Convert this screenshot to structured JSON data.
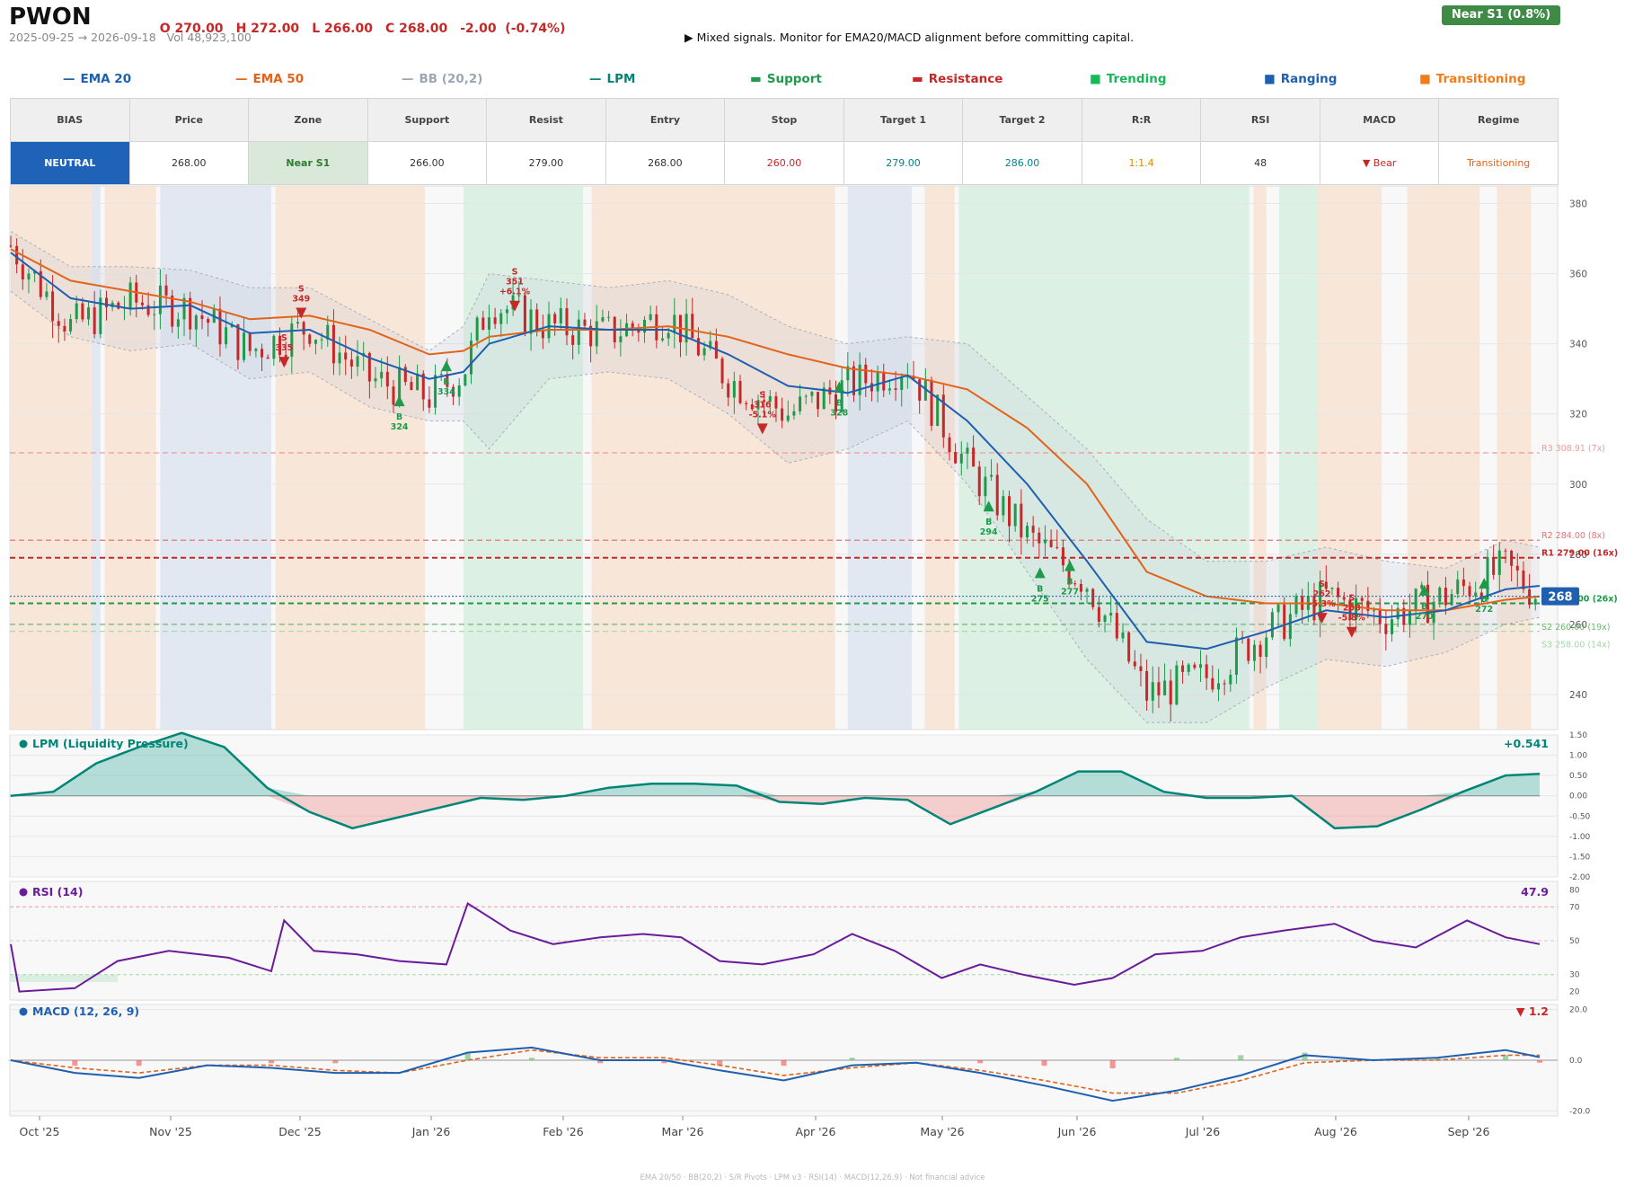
{
  "header": {
    "ticker": "PWON",
    "ohlc": [
      "O 270.00",
      "H 272.00",
      "L 266.00",
      "C 268.00",
      "-2.00  (-0.74%)"
    ],
    "range": "2025-09-25 → 2026-09-18",
    "volume": "Vol 48,923,100",
    "signal": "▶  Mixed signals. Monitor for EMA20/MACD alignment before committing capital.",
    "badge": "Near S1  (0.8%)"
  },
  "legend": [
    {
      "label": "EMA 20",
      "glyph": "—",
      "color": "#1f5fb0"
    },
    {
      "label": "EMA 50",
      "glyph": "—",
      "color": "#e2631a"
    },
    {
      "label": "BB (20,2)",
      "glyph": "—",
      "color": "#9aa7b4"
    },
    {
      "label": "LPM",
      "glyph": "—",
      "color": "#008577"
    },
    {
      "label": "Support",
      "glyph": "▬",
      "color": "#1e9a4a"
    },
    {
      "label": "Resistance",
      "glyph": "▬",
      "color": "#c62828"
    },
    {
      "label": "Trending",
      "glyph": "■",
      "color": "#17b85a"
    },
    {
      "label": "Ranging",
      "glyph": "■",
      "color": "#1f5fb0"
    },
    {
      "label": "Transitioning",
      "glyph": "■",
      "color": "#f07d1a"
    }
  ],
  "summary": {
    "headers": [
      "BIAS",
      "Price",
      "Zone",
      "Support",
      "Resist",
      "Entry",
      "Stop",
      "Target 1",
      "Target 2",
      "R:R",
      "RSI",
      "MACD",
      "Regime"
    ],
    "values": [
      "NEUTRAL",
      "268.00",
      "Near S1",
      "266.00",
      "279.00",
      "268.00",
      "260.00",
      "279.00",
      "286.00",
      "1:1.4",
      "48",
      "▼ Bear",
      "Transitioning"
    ],
    "value_colors": [
      "#ffffff",
      "#333333",
      "#2e7d32",
      "#333333",
      "#333333",
      "#333333",
      "#c62828",
      "#00838f",
      "#00838f",
      "#e08a00",
      "#333333",
      "#c62828",
      "#e2631a"
    ]
  },
  "chart_data": [
    {
      "type": "candlestick",
      "title": "",
      "ylim": [
        230,
        385
      ],
      "yticks": [
        240,
        260,
        280,
        300,
        320,
        340,
        360,
        380
      ],
      "xticks": [
        "Oct '25",
        "Nov '25",
        "Dec '25",
        "Jan '26",
        "Feb '26",
        "Mar '26",
        "Apr '26",
        "May '26",
        "Jun '26",
        "Jul '26",
        "Aug '26",
        "Sep '26"
      ],
      "x": [
        "2025-09-25",
        "2025-10-09",
        "2025-10-23",
        "2025-11-06",
        "2025-11-20",
        "2025-12-04",
        "2025-12-18",
        "2026-01-01",
        "2026-01-09",
        "2026-01-15",
        "2026-01-29",
        "2026-02-12",
        "2026-02-26",
        "2026-03-12",
        "2026-03-26",
        "2026-04-09",
        "2026-04-23",
        "2026-05-07",
        "2026-05-21",
        "2026-06-04",
        "2026-06-18",
        "2026-07-02",
        "2026-07-16",
        "2026-07-30",
        "2026-08-13",
        "2026-08-27",
        "2026-09-10",
        "2026-09-18"
      ],
      "close": [
        368,
        345,
        352,
        350,
        338,
        345,
        330,
        325,
        332,
        352,
        345,
        343,
        348,
        330,
        320,
        328,
        334,
        305,
        285,
        272,
        240,
        245,
        258,
        268,
        262,
        268,
        276,
        268
      ],
      "ema20": [
        366,
        353,
        350,
        351,
        343,
        344,
        336,
        330,
        332,
        340,
        345,
        344,
        344,
        337,
        328,
        326,
        331,
        318,
        300,
        278,
        255,
        253,
        258,
        264,
        262,
        264,
        270,
        271
      ],
      "ema50": [
        367,
        358,
        355,
        352,
        347,
        348,
        344,
        337,
        338,
        342,
        344,
        344,
        345,
        342,
        337,
        333,
        331,
        327,
        316,
        300,
        275,
        268,
        266,
        266,
        264,
        264,
        267,
        268
      ],
      "bb_upper": [
        372,
        362,
        362,
        361,
        356,
        356,
        347,
        338,
        345,
        360,
        358,
        356,
        358,
        354,
        345,
        340,
        342,
        340,
        325,
        310,
        290,
        278,
        278,
        282,
        278,
        276,
        284,
        282
      ],
      "bb_lower": [
        355,
        342,
        338,
        340,
        330,
        332,
        322,
        318,
        318,
        310,
        330,
        332,
        330,
        320,
        306,
        310,
        318,
        300,
        275,
        250,
        232,
        232,
        242,
        250,
        248,
        252,
        260,
        262
      ],
      "levels": [
        {
          "label": "R3 308.91 (7x)",
          "value": 308.91,
          "color": "#ef9a9a",
          "style": "dashed"
        },
        {
          "label": "R2 284.00 (8x)",
          "value": 284,
          "color": "#e57373",
          "style": "dashed"
        },
        {
          "label": "R1 279.00 (16x)",
          "value": 279,
          "color": "#c62828",
          "style": "dashed"
        },
        {
          "label": "S1 266.00 (26x)",
          "value": 266,
          "color": "#1e9a4a",
          "style": "dashed"
        },
        {
          "label": "S2 260.00 (19x)",
          "value": 260,
          "color": "#66bb6a",
          "style": "dashed"
        },
        {
          "label": "S3 258.00 (14x)",
          "value": 258,
          "color": "#a5d6a7",
          "style": "dashed"
        }
      ],
      "last_price": {
        "label": "268",
        "value": 268
      },
      "signals": [
        {
          "x": "2025-11-28",
          "y": 335,
          "side": "S",
          "label": "S\n335"
        },
        {
          "x": "2025-12-02",
          "y": 349,
          "side": "S",
          "label": "S\n349"
        },
        {
          "x": "2025-12-25",
          "y": 324,
          "side": "B",
          "label": "B\n324"
        },
        {
          "x": "2026-01-05",
          "y": 334,
          "side": "B",
          "label": "B\n334"
        },
        {
          "x": "2026-01-21",
          "y": 351,
          "side": "S",
          "label": "S\n351\n+6.1%"
        },
        {
          "x": "2026-03-20",
          "y": 316,
          "side": "S",
          "label": "S\n316\n-5.1%"
        },
        {
          "x": "2026-04-07",
          "y": 328,
          "side": "B",
          "label": "B\n328"
        },
        {
          "x": "2026-05-12",
          "y": 294,
          "side": "B",
          "label": "B\n294"
        },
        {
          "x": "2026-05-24",
          "y": 275,
          "side": "B",
          "label": "B\n275"
        },
        {
          "x": "2026-05-31",
          "y": 277,
          "side": "B",
          "label": "B\n277"
        },
        {
          "x": "2026-07-29",
          "y": 262,
          "side": "S",
          "label": "S\n262\n-5.3%"
        },
        {
          "x": "2026-08-05",
          "y": 258,
          "side": "S",
          "label": "S\n258\n-5.8%"
        },
        {
          "x": "2026-08-22",
          "y": 270,
          "side": "B",
          "label": "B\n270"
        },
        {
          "x": "2026-09-05",
          "y": 272,
          "side": "B",
          "label": "B\n272"
        }
      ],
      "regimes": [
        {
          "start": "2025-09-25",
          "end": "2025-10-14",
          "type": "Transitioning"
        },
        {
          "start": "2025-10-14",
          "end": "2025-10-16",
          "type": "Ranging"
        },
        {
          "start": "2025-10-17",
          "end": "2025-10-29",
          "type": "Transitioning"
        },
        {
          "start": "2025-10-30",
          "end": "2025-11-25",
          "type": "Ranging"
        },
        {
          "start": "2025-11-26",
          "end": "2025-12-31",
          "type": "Transitioning"
        },
        {
          "start": "2026-01-09",
          "end": "2026-02-06",
          "type": "Trending"
        },
        {
          "start": "2026-02-08",
          "end": "2026-04-06",
          "type": "Transitioning"
        },
        {
          "start": "2026-04-09",
          "end": "2026-04-24",
          "type": "Ranging"
        },
        {
          "start": "2026-04-27",
          "end": "2026-05-04",
          "type": "Transitioning"
        },
        {
          "start": "2026-05-05",
          "end": "2026-07-12",
          "type": "Trending"
        },
        {
          "start": "2026-07-13",
          "end": "2026-07-16",
          "type": "Transitioning"
        },
        {
          "start": "2026-07-19",
          "end": "2026-07-28",
          "type": "Trending"
        },
        {
          "start": "2026-07-28",
          "end": "2026-08-12",
          "type": "Transitioning"
        },
        {
          "start": "2026-08-18",
          "end": "2026-09-04",
          "type": "Transitioning"
        },
        {
          "start": "2026-09-08",
          "end": "2026-09-16",
          "type": "Transitioning"
        }
      ]
    },
    {
      "type": "area",
      "title": "LPM (Liquidity Pressure)",
      "last_label": "+0.541",
      "ylim": [
        -2.0,
        1.5
      ],
      "yticks": [
        -2.0,
        -1.5,
        -1.0,
        -0.5,
        0.0,
        0.5,
        1.0,
        1.5
      ],
      "x": [
        "2025-09-25",
        "2025-10-05",
        "2025-10-15",
        "2025-10-25",
        "2025-11-04",
        "2025-11-14",
        "2025-11-24",
        "2025-12-04",
        "2025-12-14",
        "2025-12-24",
        "2026-01-03",
        "2026-01-13",
        "2026-01-23",
        "2026-02-02",
        "2026-02-12",
        "2026-02-22",
        "2026-03-04",
        "2026-03-14",
        "2026-03-24",
        "2026-04-03",
        "2026-04-13",
        "2026-04-23",
        "2026-05-03",
        "2026-05-13",
        "2026-05-23",
        "2026-06-02",
        "2026-06-12",
        "2026-06-22",
        "2026-07-02",
        "2026-07-12",
        "2026-07-22",
        "2026-08-01",
        "2026-08-11",
        "2026-08-21",
        "2026-08-31",
        "2026-09-10",
        "2026-09-18"
      ],
      "values": [
        0.0,
        0.1,
        0.8,
        1.2,
        1.55,
        1.2,
        0.2,
        -0.4,
        -0.8,
        -0.55,
        -0.3,
        -0.05,
        -0.1,
        0.0,
        0.2,
        0.3,
        0.3,
        0.25,
        -0.15,
        -0.2,
        -0.05,
        -0.1,
        -0.7,
        -0.3,
        0.1,
        0.6,
        0.6,
        0.1,
        -0.05,
        -0.05,
        0.0,
        -0.8,
        -0.75,
        -0.35,
        0.1,
        0.5,
        0.54
      ]
    },
    {
      "type": "line",
      "title": "RSI (14)",
      "last_label": "47.9",
      "ylim": [
        15,
        85
      ],
      "yticks": [
        20,
        30,
        50,
        70,
        80
      ],
      "x": [
        "2025-09-25",
        "2025-09-27",
        "2025-10-10",
        "2025-10-20",
        "2025-11-01",
        "2025-11-15",
        "2025-11-25",
        "2025-11-28",
        "2025-12-05",
        "2025-12-15",
        "2025-12-25",
        "2026-01-05",
        "2026-01-10",
        "2026-01-20",
        "2026-01-30",
        "2026-02-10",
        "2026-02-20",
        "2026-03-01",
        "2026-03-10",
        "2026-03-20",
        "2026-04-01",
        "2026-04-10",
        "2026-04-20",
        "2026-05-01",
        "2026-05-10",
        "2026-05-20",
        "2026-06-01",
        "2026-06-10",
        "2026-06-20",
        "2026-07-01",
        "2026-07-10",
        "2026-07-20",
        "2026-08-01",
        "2026-08-10",
        "2026-08-20",
        "2026-09-01",
        "2026-09-10",
        "2026-09-18"
      ],
      "values": [
        48,
        20,
        22,
        38,
        44,
        40,
        32,
        62,
        44,
        42,
        38,
        36,
        72,
        56,
        48,
        52,
        54,
        52,
        38,
        36,
        42,
        54,
        44,
        28,
        36,
        30,
        24,
        28,
        42,
        44,
        52,
        56,
        60,
        50,
        46,
        62,
        52,
        48
      ]
    },
    {
      "type": "line",
      "title": "MACD (12, 26, 9)",
      "last_label": "▼ 1.2",
      "ylim": [
        -22,
        22
      ],
      "yticks": [
        -20.0,
        0.0,
        20.0
      ],
      "x": [
        "2025-09-25",
        "2025-10-10",
        "2025-10-25",
        "2025-11-10",
        "2025-11-25",
        "2025-12-10",
        "2025-12-25",
        "2026-01-10",
        "2026-01-25",
        "2026-02-10",
        "2026-02-25",
        "2026-03-10",
        "2026-03-25",
        "2026-04-10",
        "2026-04-25",
        "2026-05-10",
        "2026-05-25",
        "2026-06-10",
        "2026-06-25",
        "2026-07-10",
        "2026-07-25",
        "2026-08-10",
        "2026-08-25",
        "2026-09-10",
        "2026-09-18"
      ],
      "series": [
        {
          "name": "MACD",
          "values": [
            0,
            -5,
            -7,
            -2,
            -3,
            -5,
            -5,
            3,
            5,
            0,
            0,
            -4,
            -8,
            -2,
            -1,
            -5,
            -10,
            -16,
            -12,
            -6,
            2,
            0,
            1,
            4,
            1.2
          ],
          "color": "#1f5fb0"
        },
        {
          "name": "Signal",
          "values": [
            0,
            -3,
            -5,
            -2,
            -2,
            -4,
            -5,
            0,
            4,
            1,
            1,
            -2,
            -6,
            -3,
            -1,
            -4,
            -8,
            -13,
            -13,
            -8,
            -1,
            0,
            0,
            2,
            2
          ],
          "color": "#e2631a"
        }
      ],
      "histogram": [
        0,
        -2,
        -2,
        0,
        -1,
        -1,
        0,
        3,
        1,
        -1,
        -1,
        -2,
        -2,
        1,
        0,
        -1,
        -2,
        -3,
        1,
        2,
        3,
        0,
        1,
        2,
        -0.8
      ]
    }
  ],
  "footer": "EMA 20/50  ·  BB(20,2)  ·  S/R Pivots  ·  LPM v3  ·  RSI(14)  ·  MACD(12,26,9)  ·  Not financial advice"
}
